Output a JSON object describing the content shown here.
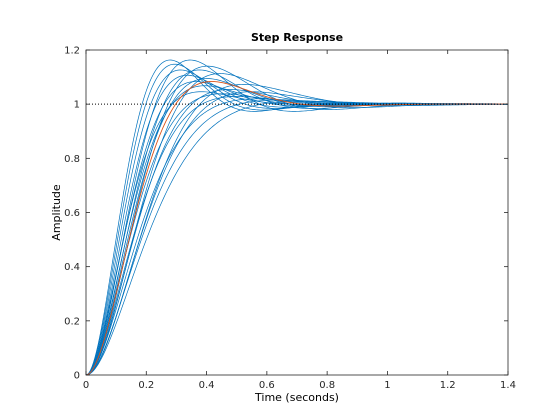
{
  "chart_data": {
    "type": "line",
    "title": "Step Response",
    "xlabel": "Time (seconds)",
    "ylabel": "Amplitude",
    "xlim": [
      0,
      1.4
    ],
    "ylim": [
      0,
      1.2
    ],
    "xticks": [
      0,
      0.2,
      0.4,
      0.6,
      0.8,
      1,
      1.2,
      1.4
    ],
    "xtick_labels": [
      "0",
      "0.2",
      "0.4",
      "0.6",
      "0.8",
      "1",
      "1.2",
      "1.4"
    ],
    "yticks": [
      0,
      0.2,
      0.4,
      0.6,
      0.8,
      1,
      1.2
    ],
    "ytick_labels": [
      "0",
      "0.2",
      "0.4",
      "0.6",
      "0.8",
      "1",
      "1.2"
    ],
    "grid": false,
    "reference_line": {
      "y": 1,
      "style": "dotted",
      "color": "#000000"
    },
    "colors": {
      "series": "#0072BD",
      "nominal": "#D95319",
      "axes": "#262626"
    },
    "series_model": "second_order_step",
    "series": [
      {
        "zeta": 0.5,
        "wn": 13.0
      },
      {
        "zeta": 0.52,
        "wn": 12.5
      },
      {
        "zeta": 0.55,
        "wn": 12.0
      },
      {
        "zeta": 0.58,
        "wn": 11.5
      },
      {
        "zeta": 0.62,
        "wn": 11.0
      },
      {
        "zeta": 0.5,
        "wn": 10.5
      },
      {
        "zeta": 0.55,
        "wn": 10.0
      },
      {
        "zeta": 0.6,
        "wn": 9.8
      },
      {
        "zeta": 0.65,
        "wn": 10.5
      },
      {
        "zeta": 0.7,
        "wn": 11.5
      },
      {
        "zeta": 0.72,
        "wn": 10.0
      },
      {
        "zeta": 0.68,
        "wn": 9.0
      },
      {
        "zeta": 0.75,
        "wn": 9.5
      },
      {
        "zeta": 0.78,
        "wn": 8.8
      },
      {
        "zeta": 0.8,
        "wn": 8.2
      },
      {
        "zeta": 0.82,
        "wn": 7.6
      },
      {
        "zeta": 0.7,
        "wn": 8.0
      },
      {
        "zeta": 0.64,
        "wn": 7.8
      },
      {
        "zeta": 0.57,
        "wn": 8.6
      },
      {
        "zeta": 0.53,
        "wn": 9.2
      },
      {
        "zeta": 0.62,
        "wn": 9.6,
        "nominal": true
      }
    ]
  }
}
